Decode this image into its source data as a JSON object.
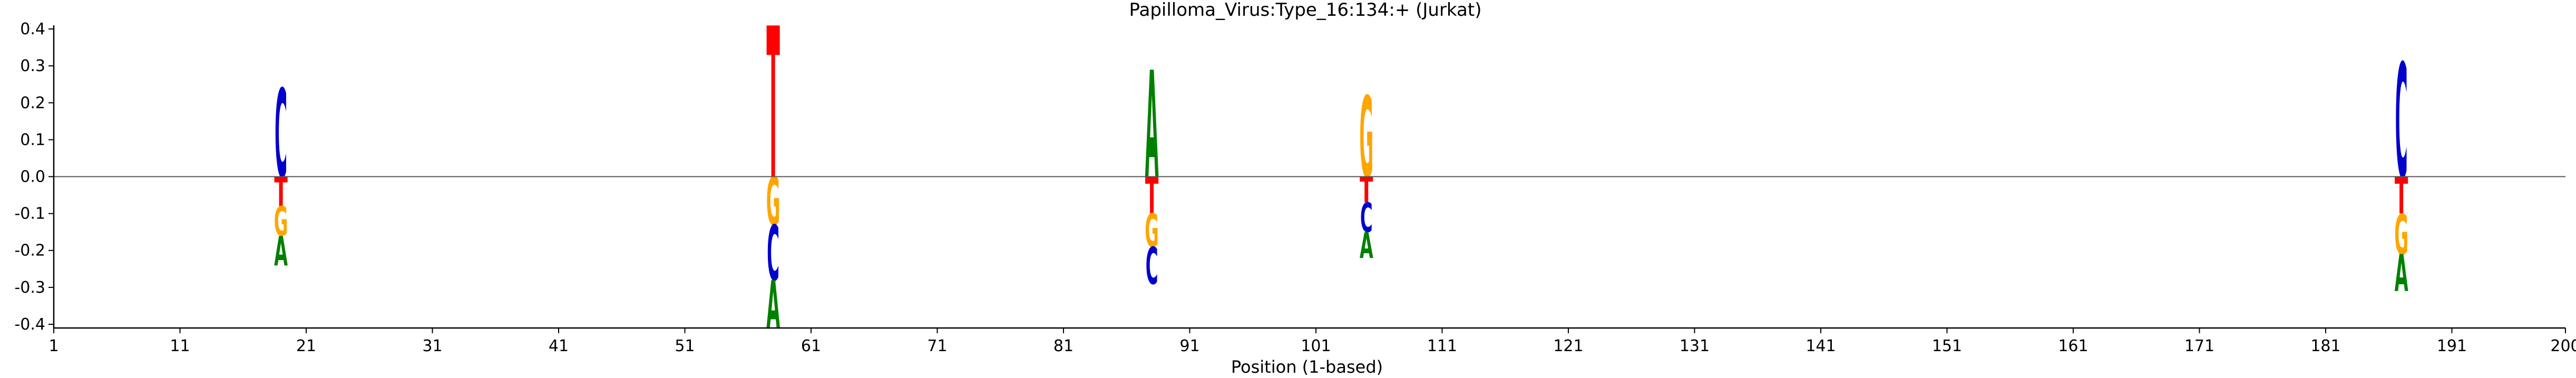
{
  "chart_data": {
    "type": "sequence-logo",
    "title": "Papilloma_Virus:Type_16:134:+  (Jurkat)",
    "xlabel": "Position (1-based)",
    "ylabel": "",
    "xlim": [
      1,
      200
    ],
    "ylim": [
      -0.41,
      0.41
    ],
    "xticks": [
      "1",
      "11",
      "21",
      "31",
      "41",
      "51",
      "61",
      "71",
      "81",
      "91",
      "101",
      "111",
      "121",
      "131",
      "141",
      "151",
      "161",
      "171",
      "181",
      "191",
      "200"
    ],
    "yticks": [
      "-0.4",
      "-0.3",
      "-0.2",
      "-0.1",
      "0.0",
      "0.1",
      "0.2",
      "0.3",
      "0.4"
    ],
    "colors": {
      "A": "#008000",
      "C": "#0000cc",
      "G": "#ffa500",
      "T": "#ff0000"
    },
    "positions": [
      {
        "x": 19,
        "letters": [
          {
            "base": "C",
            "y0": 0.0,
            "y1": 0.24
          },
          {
            "base": "T",
            "y0": -0.08,
            "y1": 0.0
          },
          {
            "base": "G",
            "y0": -0.16,
            "y1": -0.08
          },
          {
            "base": "A",
            "y0": -0.24,
            "y1": -0.16
          }
        ]
      },
      {
        "x": 58,
        "letters": [
          {
            "base": "T",
            "y0": 0.0,
            "y1": 0.41
          },
          {
            "base": "G",
            "y0": -0.13,
            "y1": 0.0
          },
          {
            "base": "C",
            "y0": -0.28,
            "y1": -0.13
          },
          {
            "base": "A",
            "y0": -0.41,
            "y1": -0.28
          }
        ]
      },
      {
        "x": 88,
        "letters": [
          {
            "base": "A",
            "y0": 0.0,
            "y1": 0.29
          },
          {
            "base": "T",
            "y0": -0.1,
            "y1": 0.0
          },
          {
            "base": "G",
            "y0": -0.19,
            "y1": -0.1
          },
          {
            "base": "C",
            "y0": -0.29,
            "y1": -0.19
          }
        ]
      },
      {
        "x": 105,
        "letters": [
          {
            "base": "G",
            "y0": 0.0,
            "y1": 0.22
          },
          {
            "base": "T",
            "y0": -0.07,
            "y1": 0.0
          },
          {
            "base": "C",
            "y0": -0.15,
            "y1": -0.07
          },
          {
            "base": "A",
            "y0": -0.22,
            "y1": -0.15
          }
        ]
      },
      {
        "x": 187,
        "letters": [
          {
            "base": "C",
            "y0": 0.0,
            "y1": 0.31
          },
          {
            "base": "T",
            "y0": -0.1,
            "y1": 0.0
          },
          {
            "base": "G",
            "y0": -0.21,
            "y1": -0.1
          },
          {
            "base": "A",
            "y0": -0.31,
            "y1": -0.21
          }
        ]
      }
    ]
  }
}
